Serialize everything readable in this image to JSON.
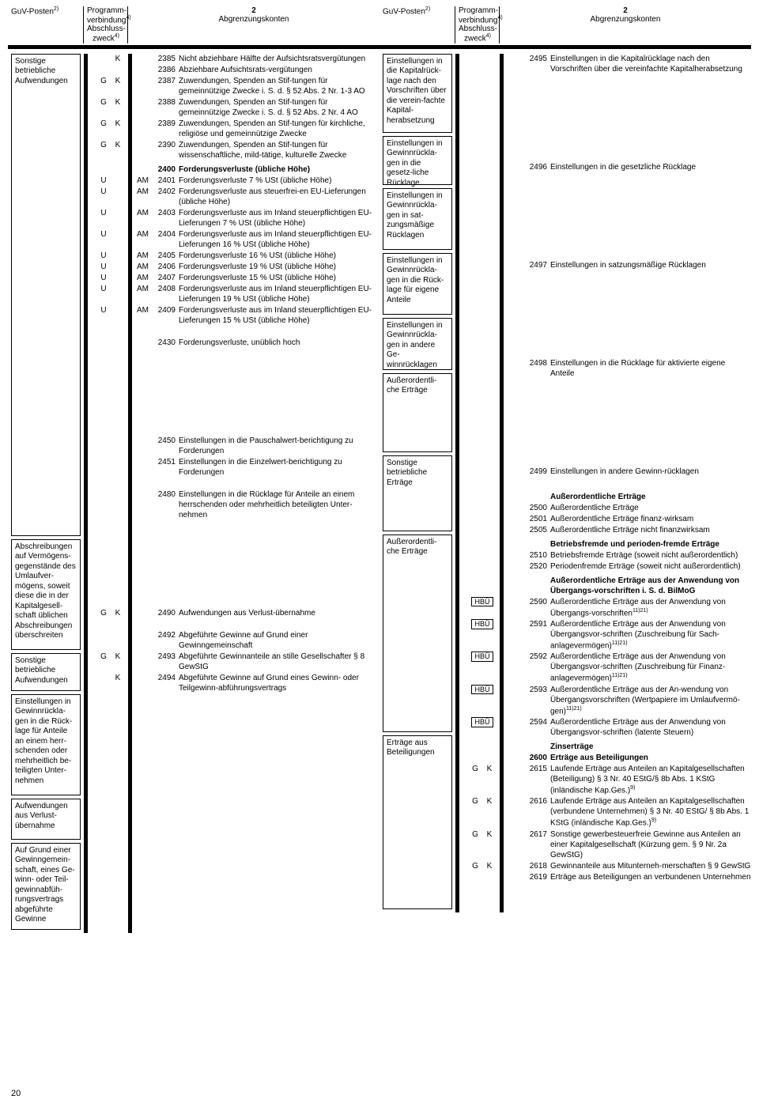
{
  "header": {
    "guv": "GuV-Posten",
    "guv_sup": "2)",
    "prog1": "Programm-verbindung",
    "prog1_sup": "4)",
    "prog2": "Abschluss-zweck",
    "prog2_sup": "4)",
    "acc_num": "2",
    "acc_title": "Abgrenzungskonten"
  },
  "left_guv": [
    "Sonstige betriebliche Aufwendungen",
    "Abschreibungen auf Vermögens-gegenstände des Umlaufver-mögens, soweit diese die in der Kapitalgesell-schaft üblichen Abschreibungen überschreiten",
    "Sonstige betriebliche Aufwendungen",
    "Einstellungen in Gewinnrückla-gen in die Rück-lage für Anteile an einem herr-schenden oder mehrheitlich be-teiligten Unter-nehmen",
    "Aufwendungen aus Verlust-übernahme",
    "Auf Grund einer Gewinngemein-schaft, eines Ge-winn- oder Teil-gewinnabfüh-rungsvertrags abgeführte Gewinne"
  ],
  "left_rows": [
    {
      "prog": [
        "",
        "K"
      ],
      "num": "2385",
      "txt": "Nicht abziehbare Hälfte der Aufsichtsratsvergütungen"
    },
    {
      "prog": [
        "",
        ""
      ],
      "num": "2386",
      "txt": "Abziehbare Aufsichtsrats-vergütungen"
    },
    {
      "prog": [
        "G",
        "K"
      ],
      "num": "2387",
      "txt": "Zuwendungen, Spenden an Stif-tungen für gemeinnützige Zwecke i. S. d. § 52 Abs. 2 Nr. 1-3 AO"
    },
    {
      "prog": [
        "G",
        "K"
      ],
      "num": "2388",
      "txt": "Zuwendungen, Spenden an Stif-tungen für gemeinnützige Zwecke i. S. d. § 52 Abs. 2 Nr. 4 AO"
    },
    {
      "prog": [
        "G",
        "K"
      ],
      "num": "2389",
      "txt": "Zuwendungen, Spenden an Stif-tungen für kirchliche, religiöse und gemeinnützige Zwecke"
    },
    {
      "prog": [
        "G",
        "K"
      ],
      "num": "2390",
      "txt": "Zuwendungen, Spenden an Stif-tungen für wissenschaftliche, mild-tätige, kulturelle Zwecke"
    },
    {
      "prog": [
        "",
        ""
      ],
      "num": "2400",
      "txt": "Forderungsverluste (übliche Höhe)",
      "bold": true,
      "head": true
    },
    {
      "prog": [
        "U",
        ""
      ],
      "pre": "AM",
      "num": "2401",
      "txt": "Forderungsverluste 7 % USt (übliche Höhe)"
    },
    {
      "prog": [
        "U",
        ""
      ],
      "pre": "AM",
      "num": "2402",
      "txt": "Forderungsverluste aus steuerfrei-en EU-Lieferungen (übliche Höhe)"
    },
    {
      "prog": [
        "U",
        ""
      ],
      "pre": "AM",
      "num": "2403",
      "txt": "Forderungsverluste aus im Inland steuerpflichtigen EU-Lieferungen 7 % USt (übliche Höhe)"
    },
    {
      "prog": [
        "U",
        ""
      ],
      "pre": "AM",
      "num": "2404",
      "txt": "Forderungsverluste aus im Inland steuerpflichtigen EU-Lieferungen 16 % USt (übliche Höhe)"
    },
    {
      "prog": [
        "U",
        ""
      ],
      "pre": "AM",
      "num": "2405",
      "txt": "Forderungsverluste 16 % USt (übliche Höhe)"
    },
    {
      "prog": [
        "U",
        ""
      ],
      "pre": "AM",
      "num": "2406",
      "txt": "Forderungsverluste 19 % USt (übliche Höhe)"
    },
    {
      "prog": [
        "U",
        ""
      ],
      "pre": "AM",
      "num": "2407",
      "txt": "Forderungsverluste 15 % USt (übliche Höhe)"
    },
    {
      "prog": [
        "U",
        ""
      ],
      "pre": "AM",
      "num": "2408",
      "txt": "Forderungsverluste aus im Inland steuerpflichtigen EU-Lieferungen 19 % USt (übliche Höhe)"
    },
    {
      "prog": [
        "U",
        ""
      ],
      "pre": "AM",
      "num": "2409",
      "txt": "Forderungsverluste aus im Inland steuerpflichtigen EU-Lieferungen 15 % USt (übliche Höhe)"
    },
    {
      "prog": [
        "",
        ""
      ],
      "num": "2430",
      "txt": "Forderungsverluste, unüblich hoch",
      "gap": true
    },
    {
      "prog": [
        "",
        ""
      ],
      "num": "2450",
      "txt": "Einstellungen in die Pauschalwert-berichtigung zu Forderungen",
      "biggap": true
    },
    {
      "prog": [
        "",
        ""
      ],
      "num": "2451",
      "txt": "Einstellungen in die Einzelwert-berichtigung zu Forderungen"
    },
    {
      "prog": [
        "",
        ""
      ],
      "num": "2480",
      "txt": "Einstellungen in die Rücklage für Anteile an einem herrschenden oder mehrheitlich beteiligten Unter-nehmen",
      "gap": true
    },
    {
      "prog": [
        "G",
        "K"
      ],
      "num": "2490",
      "txt": "Aufwendungen aus Verlust-übernahme",
      "biggap": true
    },
    {
      "prog": [
        "",
        ""
      ],
      "num": "2492",
      "txt": "Abgeführte Gewinne auf Grund einer Gewinngemeinschaft",
      "gap": true
    },
    {
      "prog": [
        "G",
        "K"
      ],
      "num": "2493",
      "txt": "Abgeführte Gewinnanteile an stille Gesellschafter § 8 GewStG"
    },
    {
      "prog": [
        "",
        "K"
      ],
      "num": "2494",
      "txt": "Abgeführte Gewinne auf Grund eines Gewinn- oder Teilgewinn-abführungsvertrags"
    }
  ],
  "right_guv": [
    "Einstellungen in die Kapitalrück-lage nach den Vorschriften über die verein-fachte Kapital-herabsetzung",
    "Einstellungen in Gewinnrückla-gen in die gesetz-liche Rücklage",
    "Einstellungen in Gewinnrückla-gen in sat-zungsmäßige Rücklagen",
    "Einstellungen in Gewinnrückla-gen in die Rück-lage für eigene Anteile",
    "Einstellungen in Gewinnrückla-gen in andere Ge-winnrücklagen",
    "Außerordentli-che Erträge",
    "Sonstige betriebliche Erträge",
    "Außerordentli-che Erträge",
    "Erträge aus Beteiligungen"
  ],
  "right_rows": [
    {
      "prog": [
        "",
        ""
      ],
      "num": "2495",
      "txt": "Einstellungen in die Kapitalrücklage nach den Vorschriften über die vereinfachte Kapitalherabsetzung"
    },
    {
      "prog": [
        "",
        ""
      ],
      "num": "2496",
      "txt": "Einstellungen in die gesetzliche Rücklage",
      "biggap": true
    },
    {
      "prog": [
        "",
        ""
      ],
      "num": "2497",
      "txt": "Einstellungen in satzungsmäßige Rücklagen",
      "biggap": true
    },
    {
      "prog": [
        "",
        ""
      ],
      "num": "2498",
      "txt": "Einstellungen in die Rücklage für aktivierte eigene Anteile",
      "biggap": true
    },
    {
      "prog": [
        "",
        ""
      ],
      "num": "2499",
      "txt": "Einstellungen in andere Gewinn-rücklagen",
      "biggap": true
    },
    {
      "prog": [
        "",
        ""
      ],
      "num": "",
      "txt": "Außerordentliche Erträge",
      "bold": true,
      "head": true,
      "gap": true
    },
    {
      "prog": [
        "",
        ""
      ],
      "num": "2500",
      "txt": "Außerordentliche Erträge"
    },
    {
      "prog": [
        "",
        ""
      ],
      "num": "2501",
      "txt": "Außerordentliche Erträge finanz-wirksam"
    },
    {
      "prog": [
        "",
        ""
      ],
      "num": "2505",
      "txt": "Außerordentliche Erträge nicht finanzwirksam"
    },
    {
      "prog": [
        "",
        ""
      ],
      "num": "",
      "txt": "Betriebsfremde und perioden-fremde Erträge",
      "bold": true,
      "head": true
    },
    {
      "prog": [
        "",
        ""
      ],
      "num": "2510",
      "txt": "Betriebsfremde Erträge (soweit nicht außerordentlich)"
    },
    {
      "prog": [
        "",
        ""
      ],
      "num": "2520",
      "txt": "Periodenfremde Erträge (soweit nicht außerordentlich)"
    },
    {
      "prog": [
        "",
        ""
      ],
      "num": "",
      "txt": "Außerordentliche Erträge aus der Anwendung von Übergangs-vorschriften i. S. d. BilMoG",
      "bold": true,
      "head": true
    },
    {
      "prog": [
        "HBÜ"
      ],
      "num": "2590",
      "txt": "Außerordentliche Erträge aus der Anwendung von Übergangs-vorschriften",
      "sup": "11)21)",
      "box": true
    },
    {
      "prog": [
        "HBÜ"
      ],
      "num": "2591",
      "txt": "Außerordentliche Erträge aus der Anwendung von Übergangsvor-schriften (Zuschreibung für Sach-anlagevermögen)",
      "sup": "11)21)",
      "box": true
    },
    {
      "prog": [
        "HBÜ"
      ],
      "num": "2592",
      "txt": "Außerordentliche Erträge aus der Anwendung von Übergangsvor-schriften (Zuschreibung für Finanz-anlagevermögen)",
      "sup": "11)21)",
      "box": true
    },
    {
      "prog": [
        "HBÜ"
      ],
      "num": "2593",
      "txt": "Außerordentliche Erträge aus der An-wendung von Übergangsvorschriften (Wertpapiere im Umlaufvermö-gen)",
      "sup": "11)21)",
      "box": true
    },
    {
      "prog": [
        "HBÜ"
      ],
      "num": "2594",
      "txt": "Außerordentliche Erträge aus der Anwendung von Übergangsvor-schriften (latente Steuern)",
      "box": true
    },
    {
      "prog": [
        "",
        ""
      ],
      "num": "",
      "txt": "Zinserträge",
      "bold": true,
      "head": true
    },
    {
      "prog": [
        "",
        ""
      ],
      "num": "2600",
      "txt": "Erträge aus Beteiligungen",
      "bold": true
    },
    {
      "prog": [
        "G",
        "K"
      ],
      "num": "2615",
      "txt": "Laufende Erträge aus Anteilen an Kapitalgesellschaften (Beteiligung) § 3 Nr. 40 EStG/§ 8b Abs. 1 KStG (inländische Kap.Ges.)",
      "sup": "9)"
    },
    {
      "prog": [
        "G",
        "K"
      ],
      "num": "2616",
      "txt": "Laufende Erträge aus Anteilen an Kapitalgesellschaften (verbundene Unternehmen) § 3 Nr. 40 EStG/ § 8b Abs. 1 KStG (inländische Kap.Ges.)",
      "sup": "9)"
    },
    {
      "prog": [
        "G",
        "K"
      ],
      "num": "2617",
      "txt": "Sonstige gewerbesteuerfreie Gewinne aus Anteilen an einer Kapitalgesellschaft (Kürzung gem. § 9 Nr. 2a GewStG)"
    },
    {
      "prog": [
        "G",
        "K"
      ],
      "num": "2618",
      "txt": "Gewinnanteile aus Mitunterneh-merschaften § 9 GewStG"
    },
    {
      "prog": [
        "",
        ""
      ],
      "num": "2619",
      "txt": "Erträge aus Beteiligungen an verbundenen Unternehmen"
    }
  ],
  "page_number": "20"
}
